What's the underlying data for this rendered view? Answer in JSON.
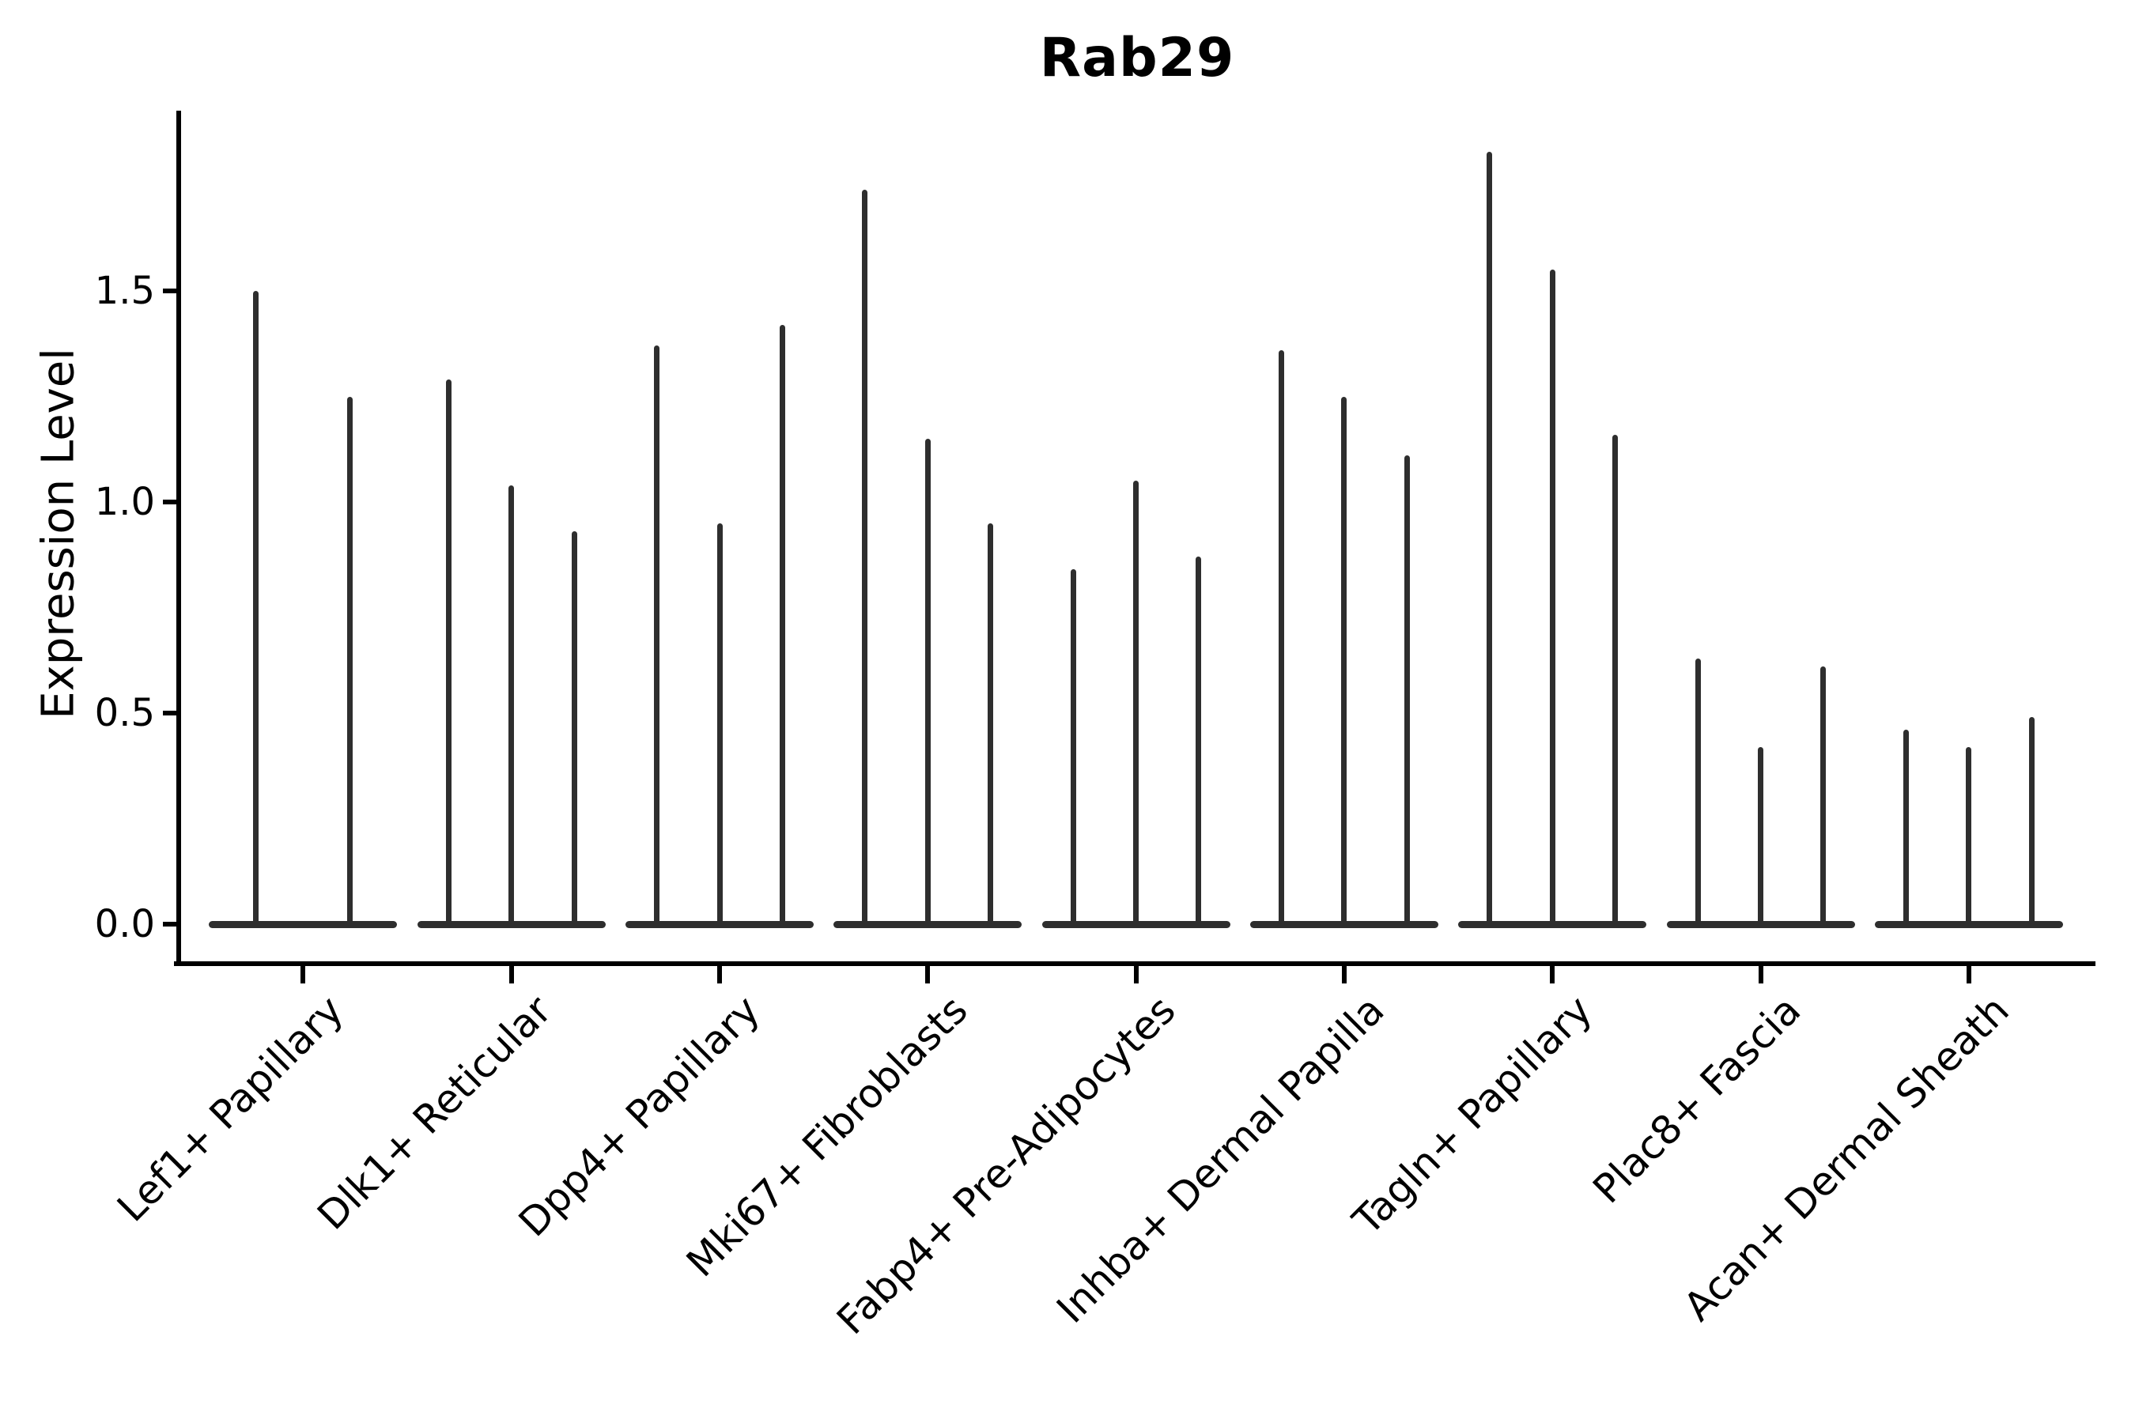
{
  "title": {
    "text": "Rab29"
  },
  "y_axis": {
    "label": "Expression Level",
    "tick_labels": [
      "0.0",
      "0.5",
      "1.0",
      "1.5"
    ],
    "tick_values": [
      0.0,
      0.5,
      1.0,
      1.5
    ]
  },
  "x_axis": {
    "tick_labels": [
      "Lef1+ Papillary",
      "Dlk1+ Reticular",
      "Dpp4+ Papillary",
      "Mki67+ Fibroblasts",
      "Fabp4+ Pre-Adipocytes",
      "Inhba+ Dermal Papilla",
      "Tagln+ Papillary",
      "Plac8+ Fascia",
      "Acan+ Dermal Sheath"
    ]
  },
  "colors": {
    "violin": "#2e2e2e",
    "axis": "#000000",
    "text": "#000000",
    "background": "#ffffff"
  },
  "chart_data": {
    "type": "violin",
    "title": "Rab29",
    "xlabel": "",
    "ylabel": "Expression Level",
    "ylim": [
      -0.09,
      1.92
    ],
    "yticks": [
      0.0,
      0.5,
      1.0,
      1.5
    ],
    "grid": false,
    "legend": false,
    "orientation": "vertical",
    "categories": [
      "Lef1+ Papillary",
      "Dlk1+ Reticular",
      "Dpp4+ Papillary",
      "Mki67+ Fibroblasts",
      "Fabp4+ Pre-Adipocytes",
      "Inhba+ Dermal Papilla",
      "Tagln+ Papillary",
      "Plac8+ Fascia",
      "Acan+ Dermal Sheath"
    ],
    "groups": [
      {
        "label": "Lef1+ Papillary",
        "spike_max_values": [
          1.5,
          1.25
        ]
      },
      {
        "label": "Dlk1+ Reticular",
        "spike_max_values": [
          1.29,
          1.04,
          0.93
        ]
      },
      {
        "label": "Dpp4+ Papillary",
        "spike_max_values": [
          1.37,
          0.95,
          1.42
        ]
      },
      {
        "label": "Mki67+ Fibroblasts",
        "spike_max_values": [
          1.74,
          1.15,
          0.95
        ]
      },
      {
        "label": "Fabp4+ Pre-Adipocytes",
        "spike_max_values": [
          0.84,
          1.05,
          0.87
        ]
      },
      {
        "label": "Inhba+ Dermal Papilla",
        "spike_max_values": [
          1.36,
          1.25,
          1.11
        ]
      },
      {
        "label": "Tagln+ Papillary",
        "spike_max_values": [
          1.83,
          1.55,
          1.16
        ]
      },
      {
        "label": "Plac8+ Fascia",
        "spike_max_values": [
          0.63,
          0.42,
          0.61
        ]
      },
      {
        "label": "Acan+ Dermal Sheath",
        "spike_max_values": [
          0.46,
          0.42,
          0.49
        ]
      }
    ],
    "baseline_value": 0.0
  }
}
